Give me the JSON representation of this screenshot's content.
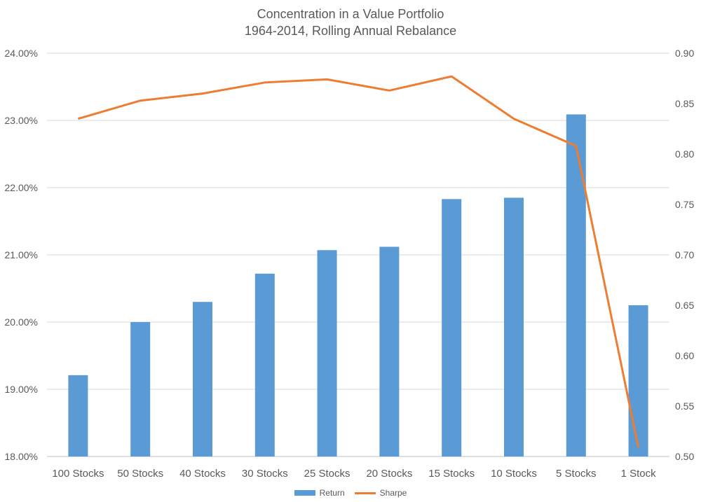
{
  "chart_data": {
    "type": "bar",
    "title": "Concentration in a Value Portfolio",
    "subtitle": "1964-2014, Rolling Annual Rebalance",
    "categories": [
      "100 Stocks",
      "50 Stocks",
      "40 Stocks",
      "30 Stocks",
      "25 Stocks",
      "20 Stocks",
      "15 Stocks",
      "10 Stocks",
      "5 Stocks",
      "1 Stock"
    ],
    "series": [
      {
        "name": "Return",
        "kind": "bar",
        "axis": "left",
        "color": "#5B9BD5",
        "values": [
          19.21,
          20.0,
          20.3,
          20.72,
          21.07,
          21.12,
          21.83,
          21.85,
          23.09,
          20.25
        ]
      },
      {
        "name": "Sharpe",
        "kind": "line",
        "axis": "right",
        "color": "#ED7D31",
        "values": [
          0.835,
          0.853,
          0.86,
          0.871,
          0.874,
          0.863,
          0.877,
          0.835,
          0.808,
          0.509
        ]
      }
    ],
    "y_left": {
      "ylim": [
        18,
        24
      ],
      "ticks": [
        18,
        19,
        20,
        21,
        22,
        23,
        24
      ],
      "tick_labels": [
        "18.00%",
        "19.00%",
        "20.00%",
        "21.00%",
        "22.00%",
        "23.00%",
        "24.00%"
      ]
    },
    "y_right": {
      "ylim": [
        0.5,
        0.9
      ],
      "ticks": [
        0.5,
        0.55,
        0.6,
        0.65,
        0.7,
        0.75,
        0.8,
        0.85,
        0.9
      ],
      "tick_labels": [
        "0.50",
        "0.55",
        "0.60",
        "0.65",
        "0.70",
        "0.75",
        "0.80",
        "0.85",
        "0.90"
      ]
    },
    "grid": true,
    "legend_position": "bottom"
  }
}
